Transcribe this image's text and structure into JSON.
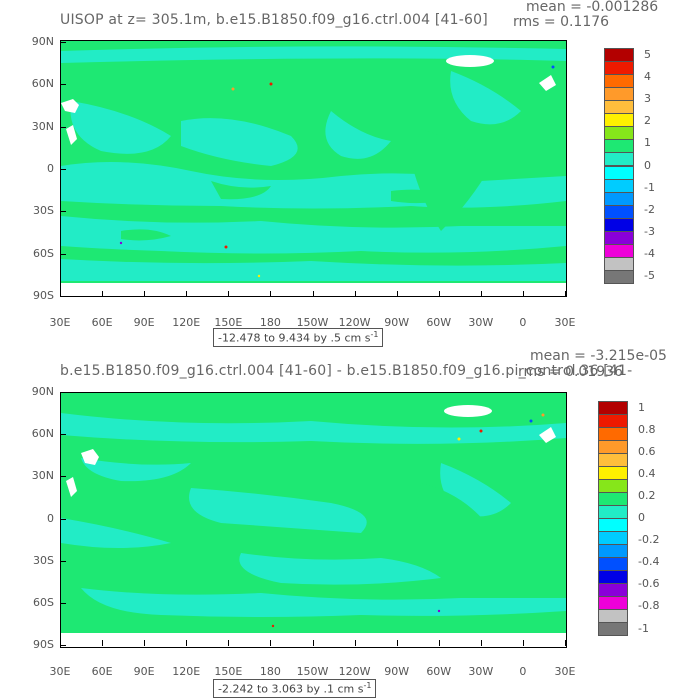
{
  "panel1": {
    "title": "UISOP at z= 305.1m, b.e15.B1850.f09_g16.ctrl.004 [41-60]",
    "mean": "mean = -0.001286",
    "rms": "rms = 0.1176",
    "range": "-12.478 to 9.434 by .5 cm s",
    "range_sup": "-1",
    "colorbar_labels": [
      "5",
      "4",
      "3",
      "2",
      "1",
      "0",
      "-1",
      "-2",
      "-3",
      "-4",
      "-5"
    ]
  },
  "panel2": {
    "title": "b.e15.B1850.f09_g16.ctrl.004 [41-60] - b.e15.B1850.f09_g16.pi_control.36 [41-",
    "mean": "mean = -3.215e-05",
    "rms": "rms = 0.01936",
    "range": "-2.242 to 3.063 by .1 cm s",
    "range_sup": "-1",
    "colorbar_labels": [
      "1",
      "0.8",
      "0.6",
      "0.4",
      "0.2",
      "0",
      "-0.2",
      "-0.4",
      "-0.6",
      "-0.8",
      "-1"
    ]
  },
  "axes": {
    "lat_labels": [
      "90N",
      "60N",
      "30N",
      "0",
      "30S",
      "60S",
      "90S"
    ],
    "lon_labels": [
      "30E",
      "60E",
      "90E",
      "120E",
      "150E",
      "180",
      "150W",
      "120W",
      "90W",
      "60W",
      "30W",
      "0",
      "30E"
    ]
  },
  "colors": {
    "field_green": "#1ee873",
    "field_cyan": "#22ecc6",
    "land": "#ffffff",
    "colorbar": [
      "#b30000",
      "#ee1a00",
      "#ff6a00",
      "#ff9a2a",
      "#ffbe3c",
      "#fff000",
      "#86e61a",
      "#1ee873",
      "#22ecc6",
      "#00ffff",
      "#00ccff",
      "#0099ff",
      "#0050ff",
      "#0000e6",
      "#8a00d9",
      "#ee00d9",
      "#c2c2c2",
      "#777777"
    ]
  }
}
